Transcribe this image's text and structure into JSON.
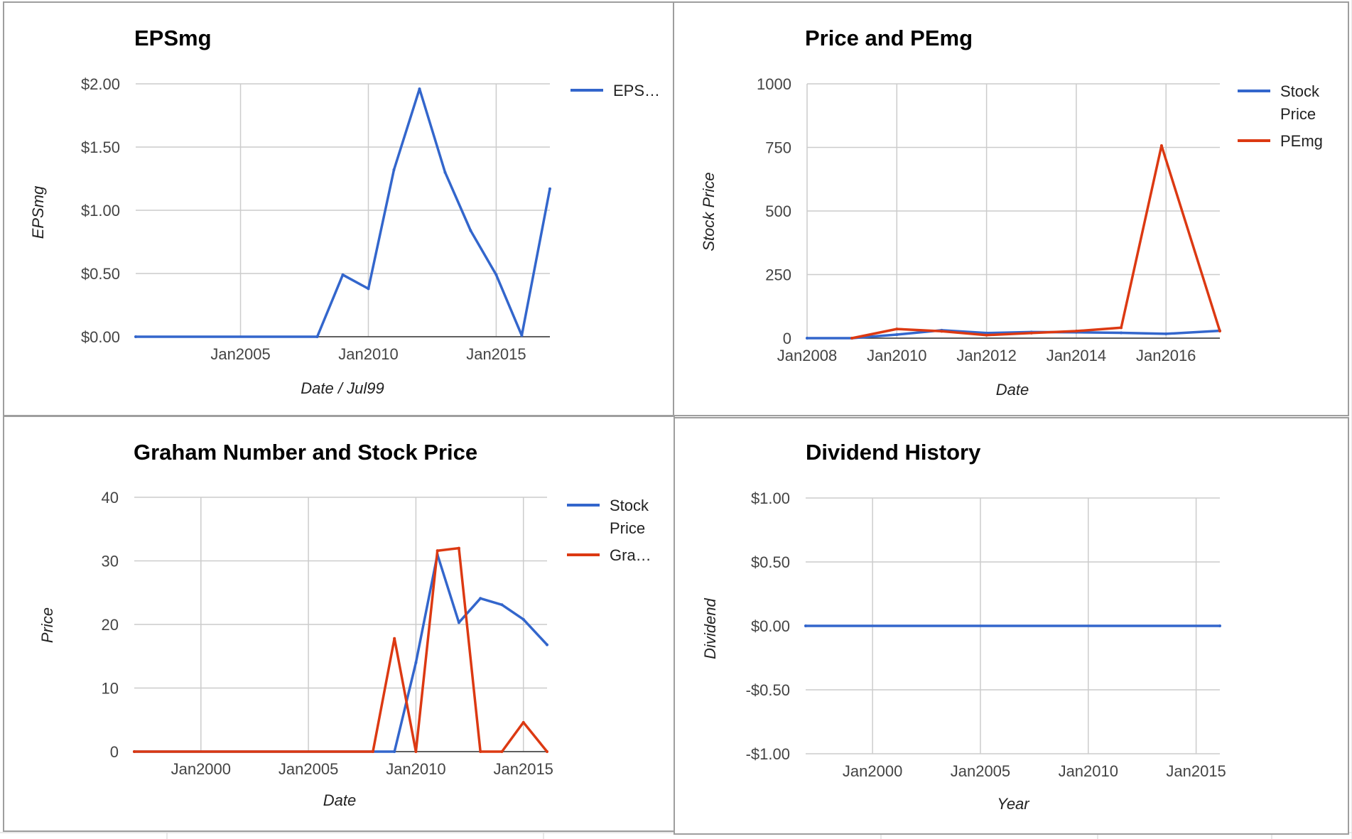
{
  "chart_data": [
    {
      "type": "line",
      "title": "EPSmg",
      "xlabel": "Date / Jul99",
      "ylabel": "EPSmg",
      "x_ticks": [
        {
          "x": 2005,
          "label": "Jan2005"
        },
        {
          "x": 2010,
          "label": "Jan2010"
        },
        {
          "x": 2015,
          "label": "Jan2015"
        }
      ],
      "y_ticks": [
        {
          "y": 0,
          "label": "$0.00"
        },
        {
          "y": 0.5,
          "label": "$0.50"
        },
        {
          "y": 1.0,
          "label": "$1.00"
        },
        {
          "y": 1.5,
          "label": "$1.50"
        },
        {
          "y": 2.0,
          "label": "$2.00"
        }
      ],
      "xlim": [
        2000.9,
        2017.1
      ],
      "ylim": [
        0,
        2
      ],
      "grid": true,
      "legend_position": "right",
      "series": [
        {
          "name": "EPS…",
          "color": "#3366cc",
          "x": [
            2000.9,
            2008,
            2009,
            2010,
            2011,
            2012,
            2013,
            2014,
            2015,
            2016,
            2017.1
          ],
          "y": [
            0,
            0,
            0.49,
            0.38,
            1.32,
            1.96,
            1.3,
            0.84,
            0.49,
            0.01,
            1.17
          ]
        }
      ]
    },
    {
      "type": "line",
      "title": "Price and PEmg",
      "xlabel": "Date",
      "ylabel": "Stock Price",
      "x_ticks": [
        {
          "x": 2008,
          "label": "Jan2008"
        },
        {
          "x": 2010,
          "label": "Jan2010"
        },
        {
          "x": 2012,
          "label": "Jan2012"
        },
        {
          "x": 2014,
          "label": "Jan2014"
        },
        {
          "x": 2016,
          "label": "Jan2016"
        }
      ],
      "y_ticks": [
        {
          "y": 0,
          "label": "0"
        },
        {
          "y": 250,
          "label": "250"
        },
        {
          "y": 500,
          "label": "500"
        },
        {
          "y": 750,
          "label": "750"
        },
        {
          "y": 1000,
          "label": "1000"
        }
      ],
      "xlim": [
        2008,
        2017.2
      ],
      "ylim": [
        0,
        1000
      ],
      "grid": true,
      "legend_position": "right",
      "series": [
        {
          "name": "Stock Price",
          "color": "#3366cc",
          "x": [
            2008,
            2009,
            2010,
            2011,
            2012,
            2013,
            2014,
            2015,
            2016,
            2017.2
          ],
          "y": [
            0,
            0,
            14,
            31,
            20,
            24,
            23,
            21,
            17,
            29
          ]
        },
        {
          "name": "PEmg",
          "color": "#dc3912",
          "x": [
            2009,
            2010,
            2011,
            2012,
            2013,
            2014,
            2015,
            2015.9,
            2017.2
          ],
          "y": [
            0,
            36,
            27,
            12,
            20,
            28,
            41,
            757,
            28
          ]
        }
      ]
    },
    {
      "type": "line",
      "title": "Graham Number and Stock Price",
      "xlabel": "Date",
      "ylabel": "Price",
      "x_ticks": [
        {
          "x": 2000,
          "label": "Jan2000"
        },
        {
          "x": 2005,
          "label": "Jan2005"
        },
        {
          "x": 2010,
          "label": "Jan2010"
        },
        {
          "x": 2015,
          "label": "Jan2015"
        }
      ],
      "y_ticks": [
        {
          "y": 0,
          "label": "0"
        },
        {
          "y": 10,
          "label": "10"
        },
        {
          "y": 20,
          "label": "20"
        },
        {
          "y": 30,
          "label": "30"
        },
        {
          "y": 40,
          "label": "40"
        }
      ],
      "xlim": [
        1996.9,
        2016.1
      ],
      "ylim": [
        0,
        40
      ],
      "grid": true,
      "legend_position": "right",
      "series": [
        {
          "name": "Stock Price",
          "color": "#3366cc",
          "x": [
            1996.9,
            2009,
            2010,
            2011,
            2012,
            2013,
            2014,
            2015,
            2016.1
          ],
          "y": [
            0,
            0,
            14,
            31,
            20.3,
            24.1,
            23.1,
            20.8,
            16.8
          ]
        },
        {
          "name": "Gra…",
          "color": "#dc3912",
          "x": [
            1996.9,
            2008,
            2009,
            2010,
            2011,
            2012,
            2013,
            2014,
            2015,
            2016.1
          ],
          "y": [
            0,
            0,
            17.8,
            0,
            31.6,
            32,
            0,
            0,
            4.6,
            0
          ]
        }
      ]
    },
    {
      "type": "line",
      "title": "Dividend History",
      "xlabel": "Year",
      "ylabel": "Dividend",
      "x_ticks": [
        {
          "x": 2000,
          "label": "Jan2000"
        },
        {
          "x": 2005,
          "label": "Jan2005"
        },
        {
          "x": 2010,
          "label": "Jan2010"
        },
        {
          "x": 2015,
          "label": "Jan2015"
        }
      ],
      "y_ticks": [
        {
          "y": -1,
          "label": "-$1.00"
        },
        {
          "y": -0.5,
          "label": "-$0.50"
        },
        {
          "y": 0,
          "label": "$0.00"
        },
        {
          "y": 0.5,
          "label": "$0.50"
        },
        {
          "y": 1,
          "label": "$1.00"
        }
      ],
      "xlim": [
        1996.9,
        2016.1
      ],
      "ylim": [
        -1,
        1
      ],
      "grid": true,
      "legend_position": "none",
      "series": [
        {
          "color": "#3366cc",
          "x": [
            1996.9,
            2016.1
          ],
          "y": [
            0,
            0
          ]
        }
      ]
    }
  ]
}
